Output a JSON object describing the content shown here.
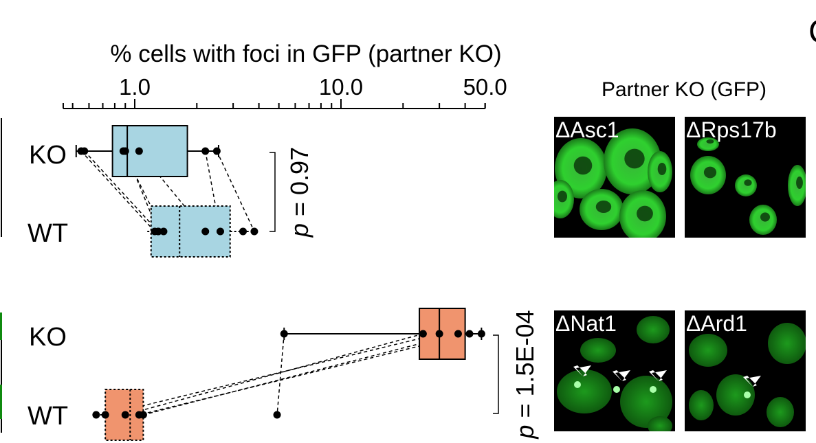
{
  "chart_data": {
    "type": "box",
    "title": "",
    "xlabel": "% cells with foci in GFP (partner KO)",
    "x_scale": "log",
    "x_ticks": [
      "1.0",
      "10.0",
      "50.0"
    ],
    "x_tick_values": [
      1.0,
      10.0,
      50.0
    ],
    "xlim": [
      0.45,
      50.0
    ],
    "panels": [
      {
        "name": "top",
        "fill": "#a8d5e2",
        "categories": [
          "KO",
          "WT"
        ],
        "boxes": [
          {
            "label": "KO",
            "whisker_low": 0.52,
            "q1": 0.78,
            "median": 0.92,
            "q3": 1.8,
            "whisker_high": 2.55,
            "style": "solid"
          },
          {
            "label": "WT",
            "whisker_low": 1.15,
            "q1": 1.2,
            "median": 1.65,
            "q3": 2.9,
            "whisker_high": 3.8,
            "style": "dotted"
          }
        ],
        "points": [
          {
            "ko": 0.55,
            "wt": 1.25
          },
          {
            "ko": 0.57,
            "wt": 1.3
          },
          {
            "ko": 0.88,
            "wt": 1.38
          },
          {
            "ko": 0.9,
            "wt": 1.3
          },
          {
            "ko": 1.05,
            "wt": 2.2
          },
          {
            "ko": 2.2,
            "wt": 2.6
          },
          {
            "ko": 2.5,
            "wt": 3.8
          }
        ],
        "extra_wt_points": [
          3.35
        ],
        "p_value": "p = 0.97"
      },
      {
        "name": "bottom",
        "fill": "#f0946e",
        "categories": [
          "KO",
          "WT"
        ],
        "boxes": [
          {
            "label": "KO",
            "whisker_low": 5.3,
            "q1": 24.0,
            "median": 30.0,
            "q3": 40.0,
            "whisker_high": 48.0,
            "style": "solid"
          },
          {
            "label": "WT",
            "whisker_low": 0.65,
            "q1": 0.72,
            "median": 0.95,
            "q3": 1.1,
            "whisker_high": 1.1,
            "style": "dotted"
          }
        ],
        "points": [
          {
            "ko": 5.3,
            "wt": 4.9
          },
          {
            "ko": 25.0,
            "wt": 0.9
          },
          {
            "ko": 30.0,
            "wt": 0.72
          },
          {
            "ko": 37.0,
            "wt": 1.1
          },
          {
            "ko": 42.0,
            "wt": 1.05
          }
        ],
        "extra_wt_points": [
          0.65
        ],
        "extra_ko_points": [
          48.0
        ],
        "p_value": "p = 1.5E-04"
      }
    ]
  },
  "images": {
    "section_title": "Partner KO (GFP)",
    "top": [
      "ΔAsc1",
      "ΔRps17b"
    ],
    "bottom": [
      "ΔNat1",
      "ΔArd1"
    ],
    "cell_color": "#22d022"
  },
  "partial_letter": "C"
}
